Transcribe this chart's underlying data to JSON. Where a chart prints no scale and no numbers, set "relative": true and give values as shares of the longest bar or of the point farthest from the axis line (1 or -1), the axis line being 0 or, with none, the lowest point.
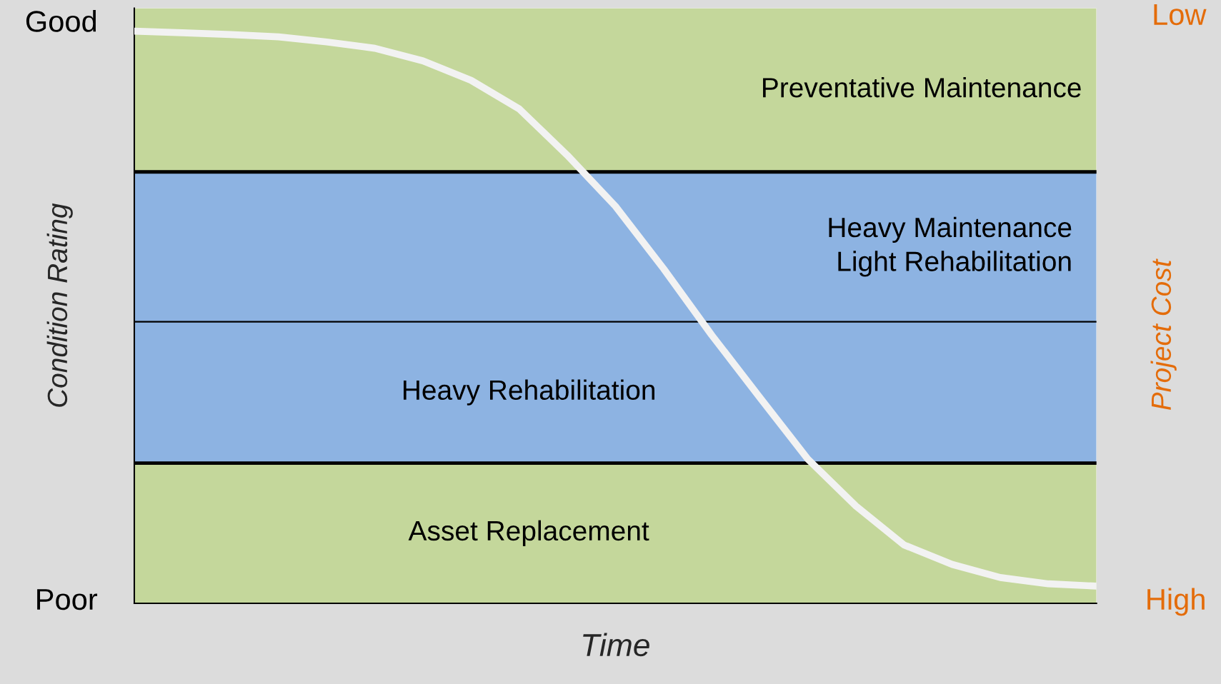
{
  "chart_data": {
    "type": "line",
    "relative": true,
    "xlabel": "Time",
    "ylabel": "Condition Rating",
    "y2label": "Project Cost",
    "categories": [
      null,
      null,
      null,
      null,
      null,
      null,
      null,
      null,
      null,
      null,
      null,
      null,
      null,
      null,
      null,
      null,
      null,
      null,
      null,
      null,
      null
    ],
    "series": [
      {
        "color": "#f2f2f2",
        "values": [
          1,
          0.997,
          0.994,
          0.99,
          0.981,
          0.97,
          0.948,
          0.914,
          0.864,
          0.783,
          0.694,
          0.585,
          0.469,
          0.36,
          0.252,
          0.17,
          0.102,
          0.068,
          0.045,
          0.034,
          0.03
        ]
      }
    ],
    "bands": [
      {
        "axis": "y",
        "from": 0.754,
        "to": 1.04,
        "label": "Preventative Maintenance",
        "color": "#c4d79b"
      },
      {
        "axis": "y",
        "from": 0.492,
        "to": 0.754,
        "label": "Heavy Maintenance\nLight Rehabilitation",
        "color": "#8db3e2"
      },
      {
        "axis": "y",
        "from": 0.245,
        "to": 0.492,
        "label": "Heavy Rehabilitation",
        "color": "#8db3e2"
      },
      {
        "axis": "y",
        "from": 0,
        "to": 0.245,
        "label": "Asset Replacement",
        "color": "#c4d79b"
      }
    ],
    "ref_lines": [
      {
        "axis": "y",
        "value": 0.754,
        "color": "#000000"
      },
      {
        "axis": "y",
        "value": 0.492,
        "color": "#000000"
      },
      {
        "axis": "y",
        "value": 0.245,
        "color": "#000000"
      }
    ],
    "annotations": [
      "Good",
      "Poor",
      "Low",
      "High"
    ],
    "marker": "none",
    "line_style": "solid"
  }
}
